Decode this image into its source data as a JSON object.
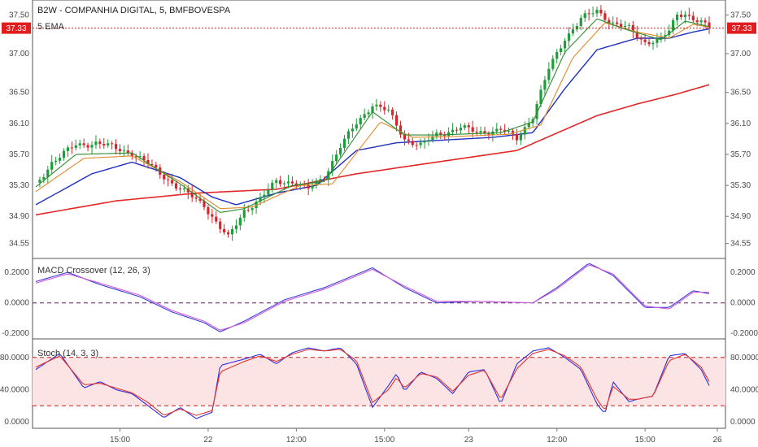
{
  "colors": {
    "ema_fast": "#2e8b2e",
    "ema_mid": "#e08a2c",
    "ema_slow": "#1f2fbf",
    "ema_long": "#e32727",
    "candle_up": "#1e9e3a",
    "candle_down": "#d3262d",
    "price_tag": "#e01e1e",
    "macd_line": "#3a3fd6",
    "signal_line": "#d15ad6",
    "stoch_k": "#2f2fe0",
    "stoch_d": "#e0352f",
    "stoch_band": "#fde4e4",
    "level_line": "#c71c1c"
  },
  "chart_data": [
    {
      "type": "candlestick",
      "title": "B2W - COMPANHIA DIGITAL, 5, BMFBOVESPA",
      "indicator": "5 EMA",
      "last_price": "37.33",
      "y_ticks": [
        "37.50",
        "37.00",
        "36.50",
        "36.10",
        "35.70",
        "35.30",
        "34.90",
        "34.55"
      ],
      "ylim": [
        34.42,
        37.63
      ],
      "x_ticks": [
        "15:00",
        "22",
        "12:00",
        "15:00",
        "23",
        "12:00",
        "15:00",
        "26"
      ],
      "price_path": [
        [
          0,
          35.3
        ],
        [
          4,
          35.6
        ],
        [
          10,
          35.82
        ],
        [
          15,
          35.85
        ],
        [
          24,
          35.72
        ],
        [
          30,
          35.5
        ],
        [
          36,
          35.25
        ],
        [
          42,
          35.05
        ],
        [
          46,
          34.75
        ],
        [
          48,
          34.62
        ],
        [
          52,
          34.98
        ],
        [
          56,
          35.12
        ],
        [
          60,
          35.35
        ],
        [
          64,
          35.35
        ],
        [
          68,
          35.25
        ],
        [
          72,
          35.42
        ],
        [
          76,
          35.8
        ],
        [
          80,
          36.1
        ],
        [
          84,
          36.35
        ],
        [
          88,
          36.25
        ],
        [
          92,
          35.9
        ],
        [
          96,
          35.82
        ],
        [
          100,
          35.95
        ],
        [
          106,
          36.05
        ],
        [
          110,
          35.98
        ],
        [
          116,
          36.02
        ],
        [
          120,
          35.9
        ],
        [
          124,
          36.2
        ],
        [
          128,
          36.8
        ],
        [
          132,
          37.2
        ],
        [
          136,
          37.45
        ],
        [
          140,
          37.55
        ],
        [
          144,
          37.4
        ],
        [
          148,
          37.32
        ],
        [
          150,
          37.22
        ],
        [
          152,
          37.15
        ],
        [
          156,
          37.2
        ],
        [
          158,
          37.28
        ],
        [
          160,
          37.5
        ],
        [
          162,
          37.52
        ],
        [
          166,
          37.4
        ],
        [
          168,
          37.33
        ]
      ],
      "ema_paths": {
        "fast": [
          [
            0,
            35.28
          ],
          [
            10,
            35.7
          ],
          [
            24,
            35.72
          ],
          [
            36,
            35.32
          ],
          [
            46,
            34.95
          ],
          [
            52,
            35.0
          ],
          [
            64,
            35.3
          ],
          [
            72,
            35.35
          ],
          [
            84,
            36.25
          ],
          [
            92,
            35.95
          ],
          [
            100,
            35.95
          ],
          [
            116,
            35.98
          ],
          [
            124,
            36.12
          ],
          [
            132,
            37.02
          ],
          [
            140,
            37.45
          ],
          [
            148,
            37.3
          ],
          [
            156,
            37.18
          ],
          [
            162,
            37.42
          ],
          [
            168,
            37.35
          ]
        ],
        "mid": [
          [
            0,
            35.22
          ],
          [
            12,
            35.65
          ],
          [
            24,
            35.68
          ],
          [
            36,
            35.35
          ],
          [
            46,
            35.0
          ],
          [
            54,
            35.02
          ],
          [
            66,
            35.3
          ],
          [
            74,
            35.32
          ],
          [
            86,
            36.12
          ],
          [
            94,
            35.92
          ],
          [
            104,
            35.93
          ],
          [
            118,
            35.96
          ],
          [
            126,
            36.08
          ],
          [
            134,
            36.95
          ],
          [
            142,
            37.4
          ],
          [
            150,
            37.28
          ],
          [
            158,
            37.2
          ],
          [
            164,
            37.38
          ],
          [
            168,
            37.34
          ]
        ],
        "slow": [
          [
            0,
            35.05
          ],
          [
            14,
            35.45
          ],
          [
            24,
            35.6
          ],
          [
            36,
            35.4
          ],
          [
            44,
            35.15
          ],
          [
            50,
            35.05
          ],
          [
            60,
            35.2
          ],
          [
            70,
            35.3
          ],
          [
            80,
            35.75
          ],
          [
            90,
            35.85
          ],
          [
            100,
            35.88
          ],
          [
            114,
            35.92
          ],
          [
            124,
            35.98
          ],
          [
            132,
            36.55
          ],
          [
            140,
            37.05
          ],
          [
            150,
            37.2
          ],
          [
            158,
            37.2
          ],
          [
            164,
            37.28
          ],
          [
            168,
            37.32
          ]
        ],
        "long": [
          [
            0,
            34.92
          ],
          [
            20,
            35.1
          ],
          [
            40,
            35.2
          ],
          [
            60,
            35.25
          ],
          [
            80,
            35.45
          ],
          [
            100,
            35.6
          ],
          [
            120,
            35.75
          ],
          [
            140,
            36.2
          ],
          [
            150,
            36.35
          ],
          [
            160,
            36.48
          ],
          [
            168,
            36.6
          ]
        ]
      }
    },
    {
      "type": "line",
      "title": "MACD Crossover (12, 26, 3)",
      "y_ticks": [
        "0.2000",
        "0.0000",
        "-0.2000"
      ],
      "ylim": [
        -0.22,
        0.27
      ],
      "zero_level": 0,
      "series": [
        {
          "name": "MACD",
          "points": [
            [
              0,
              0.14
            ],
            [
              8,
              0.2
            ],
            [
              16,
              0.12
            ],
            [
              26,
              0.04
            ],
            [
              34,
              -0.06
            ],
            [
              42,
              -0.13
            ],
            [
              46,
              -0.19
            ],
            [
              52,
              -0.12
            ],
            [
              62,
              0.02
            ],
            [
              72,
              0.1
            ],
            [
              84,
              0.23
            ],
            [
              92,
              0.1
            ],
            [
              100,
              0.0
            ],
            [
              110,
              0.01
            ],
            [
              124,
              0.0
            ],
            [
              130,
              0.1
            ],
            [
              138,
              0.26
            ],
            [
              144,
              0.18
            ],
            [
              152,
              -0.03
            ],
            [
              158,
              -0.03
            ],
            [
              164,
              0.08
            ],
            [
              168,
              0.06
            ]
          ]
        },
        {
          "name": "Signal",
          "points": [
            [
              0,
              0.13
            ],
            [
              8,
              0.19
            ],
            [
              16,
              0.13
            ],
            [
              26,
              0.05
            ],
            [
              34,
              -0.05
            ],
            [
              42,
              -0.12
            ],
            [
              46,
              -0.18
            ],
            [
              52,
              -0.13
            ],
            [
              62,
              0.01
            ],
            [
              72,
              0.09
            ],
            [
              84,
              0.22
            ],
            [
              92,
              0.11
            ],
            [
              100,
              0.01
            ],
            [
              110,
              0.01
            ],
            [
              124,
              0.0
            ],
            [
              130,
              0.09
            ],
            [
              138,
              0.25
            ],
            [
              144,
              0.19
            ],
            [
              152,
              -0.02
            ],
            [
              158,
              -0.04
            ],
            [
              164,
              0.07
            ],
            [
              168,
              0.07
            ]
          ]
        }
      ]
    },
    {
      "type": "line",
      "title": "Stoch (14, 3, 3)",
      "y_ticks": [
        "80.0000",
        "40.0000",
        "0.0000"
      ],
      "ylim": [
        -5,
        100
      ],
      "levels": [
        80,
        20
      ],
      "series": [
        {
          "name": "%K",
          "points": [
            [
              0,
              65
            ],
            [
              6,
              85
            ],
            [
              12,
              42
            ],
            [
              16,
              50
            ],
            [
              20,
              40
            ],
            [
              24,
              35
            ],
            [
              28,
              20
            ],
            [
              32,
              5
            ],
            [
              36,
              18
            ],
            [
              40,
              4
            ],
            [
              44,
              12
            ],
            [
              46,
              70
            ],
            [
              52,
              78
            ],
            [
              56,
              84
            ],
            [
              60,
              72
            ],
            [
              64,
              86
            ],
            [
              68,
              92
            ],
            [
              72,
              88
            ],
            [
              76,
              92
            ],
            [
              80,
              72
            ],
            [
              84,
              18
            ],
            [
              88,
              45
            ],
            [
              90,
              60
            ],
            [
              92,
              38
            ],
            [
              96,
              62
            ],
            [
              100,
              54
            ],
            [
              104,
              35
            ],
            [
              108,
              62
            ],
            [
              112,
              65
            ],
            [
              116,
              22
            ],
            [
              120,
              72
            ],
            [
              124,
              88
            ],
            [
              128,
              92
            ],
            [
              132,
              80
            ],
            [
              136,
              65
            ],
            [
              140,
              22
            ],
            [
              142,
              10
            ],
            [
              144,
              50
            ],
            [
              148,
              25
            ],
            [
              150,
              28
            ],
            [
              154,
              32
            ],
            [
              158,
              82
            ],
            [
              162,
              85
            ],
            [
              166,
              65
            ],
            [
              168,
              45
            ]
          ]
        },
        {
          "name": "%D",
          "points": [
            [
              0,
              68
            ],
            [
              6,
              82
            ],
            [
              12,
              46
            ],
            [
              16,
              48
            ],
            [
              20,
              42
            ],
            [
              24,
              36
            ],
            [
              28,
              24
            ],
            [
              32,
              8
            ],
            [
              36,
              16
            ],
            [
              40,
              8
            ],
            [
              44,
              14
            ],
            [
              46,
              62
            ],
            [
              52,
              75
            ],
            [
              56,
              82
            ],
            [
              60,
              75
            ],
            [
              64,
              84
            ],
            [
              68,
              90
            ],
            [
              72,
              88
            ],
            [
              76,
              90
            ],
            [
              80,
              76
            ],
            [
              84,
              24
            ],
            [
              88,
              40
            ],
            [
              90,
              55
            ],
            [
              92,
              42
            ],
            [
              96,
              60
            ],
            [
              100,
              56
            ],
            [
              104,
              38
            ],
            [
              108,
              58
            ],
            [
              112,
              64
            ],
            [
              116,
              28
            ],
            [
              120,
              66
            ],
            [
              124,
              85
            ],
            [
              128,
              90
            ],
            [
              132,
              82
            ],
            [
              136,
              68
            ],
            [
              140,
              28
            ],
            [
              142,
              14
            ],
            [
              144,
              44
            ],
            [
              148,
              28
            ],
            [
              150,
              28
            ],
            [
              154,
              32
            ],
            [
              158,
              76
            ],
            [
              162,
              84
            ],
            [
              166,
              68
            ],
            [
              168,
              50
            ]
          ]
        }
      ]
    }
  ]
}
